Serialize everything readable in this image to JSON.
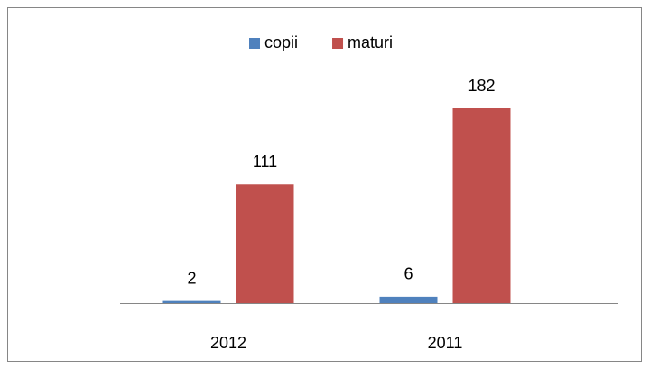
{
  "chart_data": {
    "type": "bar",
    "categories": [
      "2012",
      "2011"
    ],
    "series": [
      {
        "name": "copii",
        "color": "#4f81bd",
        "values": [
          2,
          6
        ]
      },
      {
        "name": "maturi",
        "color": "#c0504d",
        "values": [
          111,
          182
        ]
      }
    ],
    "legend": "top",
    "data_labels": true
  }
}
